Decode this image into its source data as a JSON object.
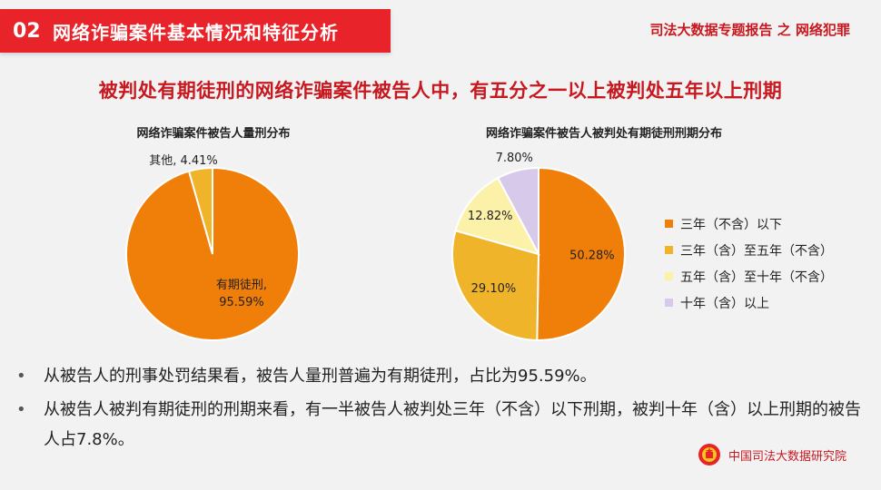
{
  "header": {
    "number": "02",
    "title": "网络诈骗案件基本情况和特征分析"
  },
  "report_tag": "司法大数据专题报告 之 网络犯罪",
  "headline": "被判处有期徒刑的网络诈骗案件被告人中，有五分之一以上被判处五年以上刑期",
  "colors": {
    "orange": "#f07f09",
    "gold": "#f0b42a",
    "lightyellow": "#fbf1a9",
    "lavender": "#d7c9ea",
    "brand_red": "#e8232a"
  },
  "chart_data": [
    {
      "type": "pie",
      "title": "网络诈骗案件被告人量刑分布",
      "slices": [
        {
          "label": "有期徒刑,",
          "value": 95.59,
          "value_label": "95.59%",
          "color": "#f07f09"
        },
        {
          "label": "其他,",
          "value": 4.41,
          "value_label": "4.41%",
          "color": "#f0b42a"
        }
      ]
    },
    {
      "type": "pie",
      "title": "网络诈骗案件被告人被判处有期徒刑刑期分布",
      "legend_position": "right",
      "slices": [
        {
          "label": "三年（不含）以下",
          "value": 50.28,
          "value_label": "50.28%",
          "color": "#f07f09"
        },
        {
          "label": "三年（含）至五年（不含）",
          "value": 29.1,
          "value_label": "29.10%",
          "color": "#f0b42a"
        },
        {
          "label": "五年（含）至十年（不含）",
          "value": 12.82,
          "value_label": "12.82%",
          "color": "#fbf1a9"
        },
        {
          "label": "十年（含）以上",
          "value": 7.8,
          "value_label": "7.80%",
          "color": "#d7c9ea"
        }
      ]
    }
  ],
  "bullets": [
    "从被告人的刑事处罚结果看，被告人量刑普遍为有期徒刑，占比为95.59%。",
    "从被告人被判有期徒刑的刑期来看，有一半被告人被判处三年（不含）以下刑期，被判十年（含）以上刑期的被告人占7.8%。"
  ],
  "bullet_symbol": "•",
  "org_name": "中国司法大数据研究院"
}
